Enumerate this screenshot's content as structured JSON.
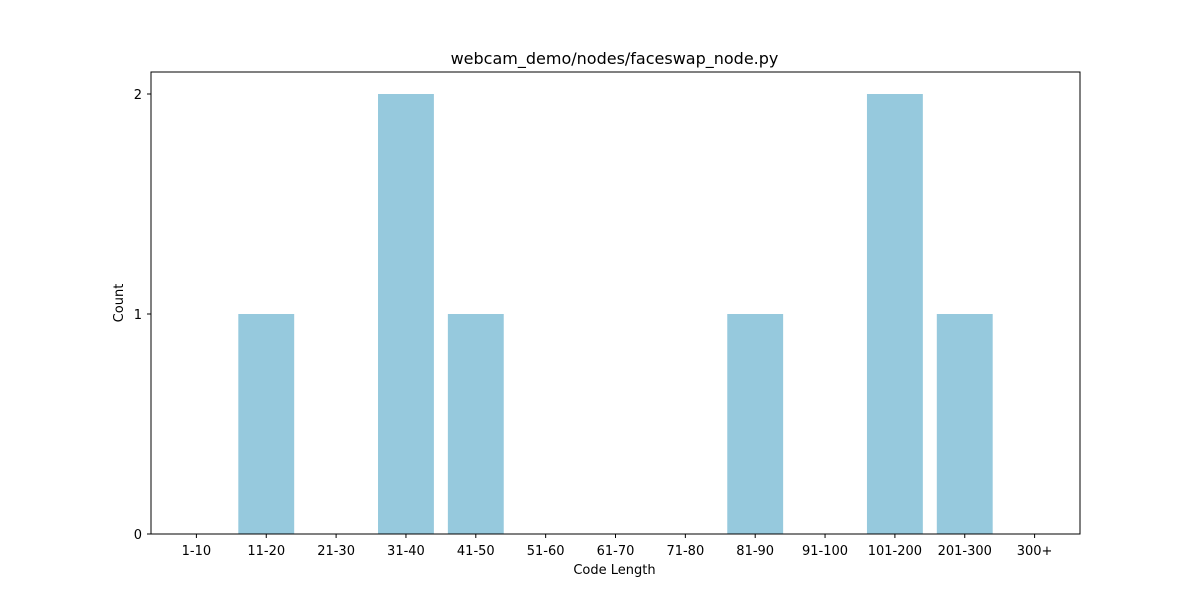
{
  "chart_data": {
    "type": "bar",
    "title": "webcam_demo/nodes/faceswap_node.py",
    "xlabel": "Code Length",
    "ylabel": "Count",
    "categories": [
      "1-10",
      "11-20",
      "21-30",
      "31-40",
      "41-50",
      "51-60",
      "61-70",
      "71-80",
      "81-90",
      "91-100",
      "101-200",
      "201-300",
      "300+"
    ],
    "values": [
      0,
      1,
      0,
      2,
      1,
      0,
      0,
      0,
      1,
      0,
      2,
      1,
      0
    ],
    "ylim": [
      0,
      2.1
    ],
    "yticks": [
      0,
      1,
      2
    ],
    "bar_color": "#96c9dd",
    "grid": false,
    "legend": "none"
  }
}
